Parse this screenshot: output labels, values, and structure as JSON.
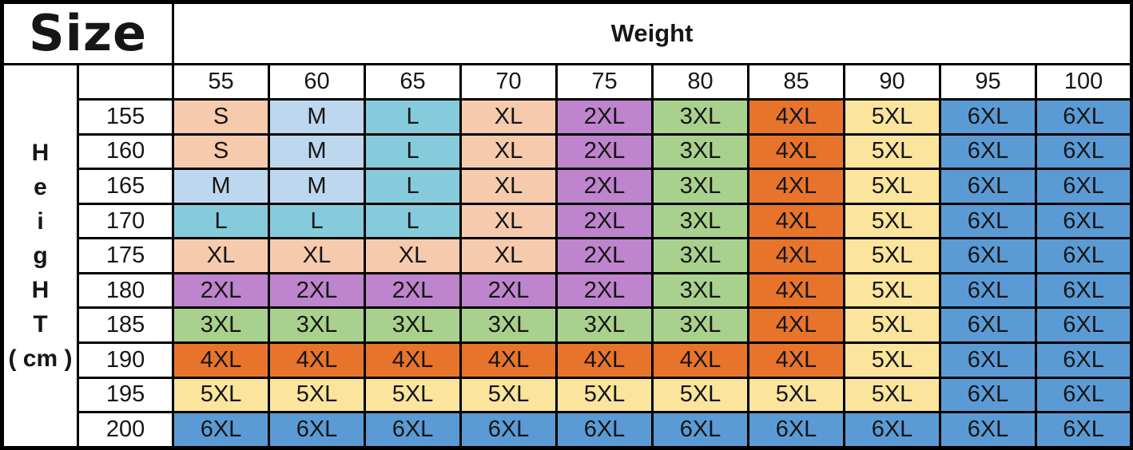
{
  "table": {
    "corner_label": "Size",
    "weight_header": "Weight",
    "height_label_letters": [
      "H",
      "e",
      "i",
      "g",
      "H",
      "T",
      "( cm )"
    ],
    "weights": [
      "55",
      "60",
      "65",
      "70",
      "75",
      "80",
      "85",
      "90",
      "95",
      "100"
    ],
    "rows": [
      {
        "height": "155",
        "sizes": [
          "S",
          "M",
          "L",
          "XL",
          "2XL",
          "3XL",
          "4XL",
          "5XL",
          "6XL",
          "6XL"
        ]
      },
      {
        "height": "160",
        "sizes": [
          "S",
          "M",
          "L",
          "XL",
          "2XL",
          "3XL",
          "4XL",
          "5XL",
          "6XL",
          "6XL"
        ]
      },
      {
        "height": "165",
        "sizes": [
          "M",
          "M",
          "L",
          "XL",
          "2XL",
          "3XL",
          "4XL",
          "5XL",
          "6XL",
          "6XL"
        ]
      },
      {
        "height": "170",
        "sizes": [
          "L",
          "L",
          "L",
          "XL",
          "2XL",
          "3XL",
          "4XL",
          "5XL",
          "6XL",
          "6XL"
        ]
      },
      {
        "height": "175",
        "sizes": [
          "XL",
          "XL",
          "XL",
          "XL",
          "2XL",
          "3XL",
          "4XL",
          "5XL",
          "6XL",
          "6XL"
        ]
      },
      {
        "height": "180",
        "sizes": [
          "2XL",
          "2XL",
          "2XL",
          "2XL",
          "2XL",
          "3XL",
          "4XL",
          "5XL",
          "6XL",
          "6XL"
        ]
      },
      {
        "height": "185",
        "sizes": [
          "3XL",
          "3XL",
          "3XL",
          "3XL",
          "3XL",
          "3XL",
          "4XL",
          "5XL",
          "6XL",
          "6XL"
        ]
      },
      {
        "height": "190",
        "sizes": [
          "4XL",
          "4XL",
          "4XL",
          "4XL",
          "4XL",
          "4XL",
          "4XL",
          "5XL",
          "6XL",
          "6XL"
        ]
      },
      {
        "height": "195",
        "sizes": [
          "5XL",
          "5XL",
          "5XL",
          "5XL",
          "5XL",
          "5XL",
          "5XL",
          "5XL",
          "6XL",
          "6XL"
        ]
      },
      {
        "height": "200",
        "sizes": [
          "6XL",
          "6XL",
          "6XL",
          "6XL",
          "6XL",
          "6XL",
          "6XL",
          "6XL",
          "6XL",
          "6XL"
        ]
      }
    ],
    "size_colors": {
      "S": "#F6CBAD",
      "M": "#BDD7EE",
      "L": "#86CBDB",
      "XL": "#F6CBAD",
      "2XL": "#BE84CD",
      "3XL": "#A9D18E",
      "4XL": "#E8742C",
      "5XL": "#FBE59D",
      "6XL": "#5B9BD5"
    },
    "border_color": "#000000",
    "text_color": "#161616"
  },
  "chart_data": {
    "type": "table",
    "title": "Size",
    "column_group_label": "Weight",
    "row_group_label": "HeigHT ( cm )",
    "columns": [
      55,
      60,
      65,
      70,
      75,
      80,
      85,
      90,
      95,
      100
    ],
    "rows": [
      155,
      160,
      165,
      170,
      175,
      180,
      185,
      190,
      195,
      200
    ],
    "matrix": [
      [
        "S",
        "M",
        "L",
        "XL",
        "2XL",
        "3XL",
        "4XL",
        "5XL",
        "6XL",
        "6XL"
      ],
      [
        "S",
        "M",
        "L",
        "XL",
        "2XL",
        "3XL",
        "4XL",
        "5XL",
        "6XL",
        "6XL"
      ],
      [
        "M",
        "M",
        "L",
        "XL",
        "2XL",
        "3XL",
        "4XL",
        "5XL",
        "6XL",
        "6XL"
      ],
      [
        "L",
        "L",
        "L",
        "XL",
        "2XL",
        "3XL",
        "4XL",
        "5XL",
        "6XL",
        "6XL"
      ],
      [
        "XL",
        "XL",
        "XL",
        "XL",
        "2XL",
        "3XL",
        "4XL",
        "5XL",
        "6XL",
        "6XL"
      ],
      [
        "2XL",
        "2XL",
        "2XL",
        "2XL",
        "2XL",
        "3XL",
        "4XL",
        "5XL",
        "6XL",
        "6XL"
      ],
      [
        "3XL",
        "3XL",
        "3XL",
        "3XL",
        "3XL",
        "3XL",
        "4XL",
        "5XL",
        "6XL",
        "6XL"
      ],
      [
        "4XL",
        "4XL",
        "4XL",
        "4XL",
        "4XL",
        "4XL",
        "4XL",
        "5XL",
        "6XL",
        "6XL"
      ],
      [
        "5XL",
        "5XL",
        "5XL",
        "5XL",
        "5XL",
        "5XL",
        "5XL",
        "5XL",
        "6XL",
        "6XL"
      ],
      [
        "6XL",
        "6XL",
        "6XL",
        "6XL",
        "6XL",
        "6XL",
        "6XL",
        "6XL",
        "6XL",
        "6XL"
      ]
    ],
    "legend": {
      "S": "#F6CBAD",
      "M": "#BDD7EE",
      "L": "#86CBDB",
      "XL": "#F6CBAD",
      "2XL": "#BE84CD",
      "3XL": "#A9D18E",
      "4XL": "#E8742C",
      "5XL": "#FBE59D",
      "6XL": "#5B9BD5"
    }
  }
}
